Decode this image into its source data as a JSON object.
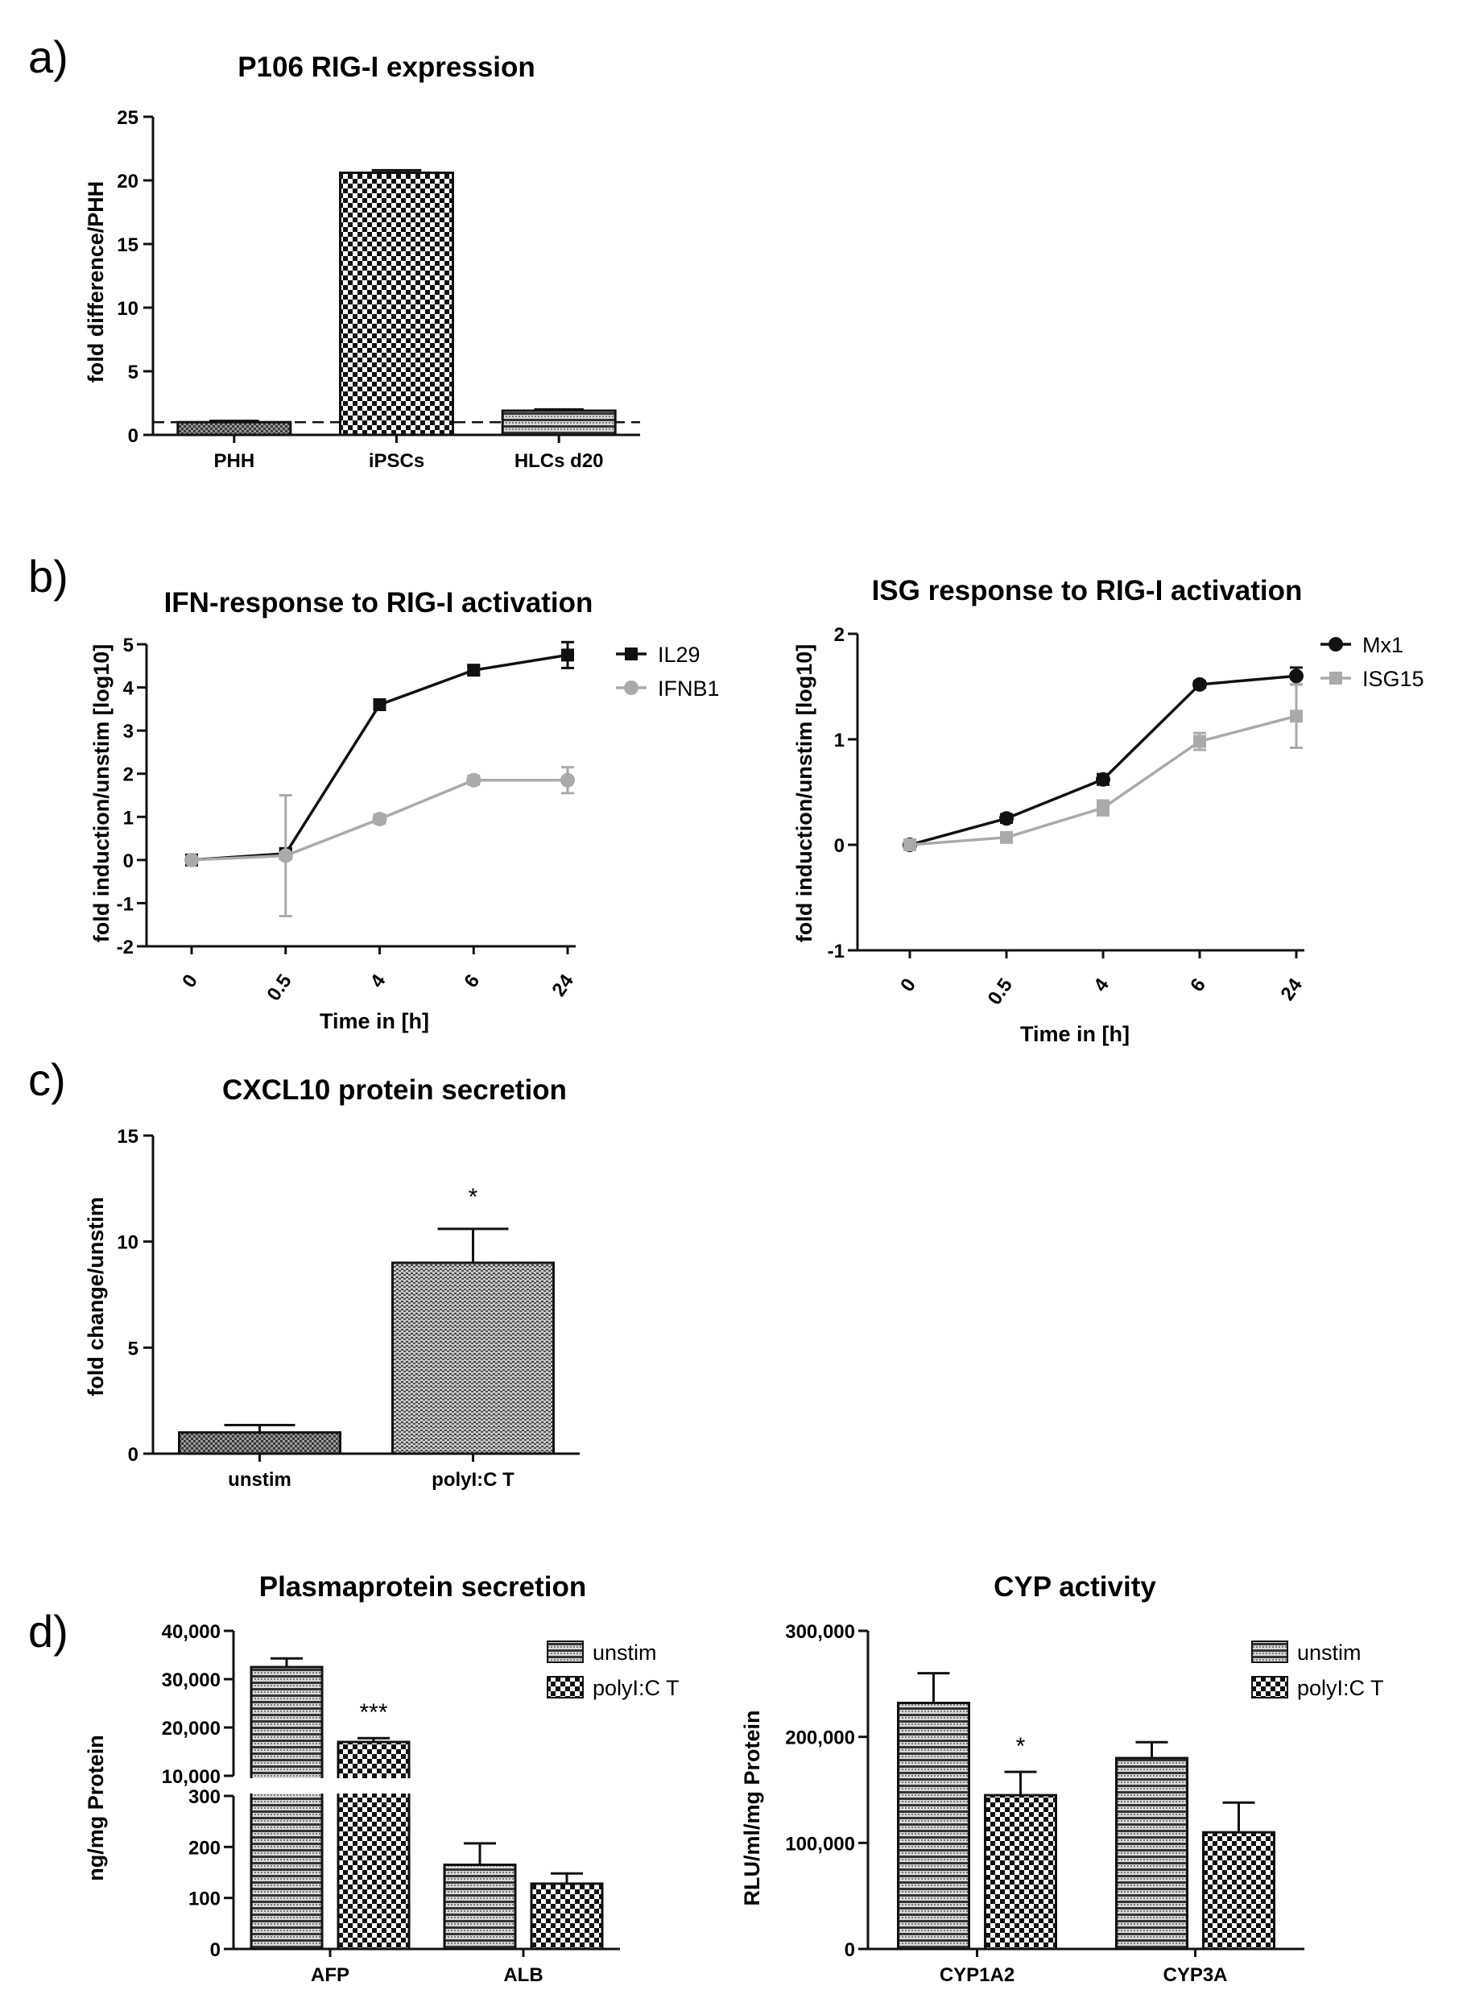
{
  "panel_labels": [
    "a)",
    "b)",
    "c)",
    "d)"
  ],
  "chart_data": [
    {
      "id": "a",
      "type": "bar",
      "title": "P106 RIG-I expression",
      "ylabel": "fold difference/PHH",
      "xlabel": "",
      "categories": [
        "PHH",
        "iPSCs",
        "HLCs d20"
      ],
      "values": [
        1.0,
        20.6,
        1.9
      ],
      "errors": [
        0.1,
        0.2,
        0.1
      ],
      "patterns": [
        "fine",
        "checker",
        "hstripe"
      ],
      "ylim": [
        0,
        25
      ],
      "yticks": [
        "0",
        "5",
        "10",
        "15",
        "20",
        "25"
      ],
      "reference_line": 1
    },
    {
      "id": "b1",
      "type": "line",
      "title": "IFN-response to RIG-I activation",
      "ylabel": "fold induction/unstim [log10]",
      "xlabel": "Time in [h]",
      "x": [
        "0",
        "0.5",
        "4",
        "6",
        "24"
      ],
      "ylim": [
        -2,
        5
      ],
      "yticks": [
        "-2",
        "-1",
        "0",
        "1",
        "2",
        "3",
        "4",
        "5"
      ],
      "series": [
        {
          "name": "IL29",
          "values": [
            0,
            0.15,
            3.6,
            4.4,
            4.75
          ],
          "errors": [
            0.05,
            0.1,
            0.1,
            0.1,
            0.3
          ],
          "color": "#111111",
          "marker": "square"
        },
        {
          "name": "IFNB1",
          "values": [
            0,
            0.1,
            0.95,
            1.85,
            1.85
          ],
          "errors": [
            0.05,
            1.4,
            0.1,
            0.1,
            0.3
          ],
          "color": "#aaaaaa",
          "marker": "circle"
        }
      ]
    },
    {
      "id": "b2",
      "type": "line",
      "title": "ISG response to RIG-I activation",
      "ylabel": "fold induction/unstim [log10]",
      "xlabel": "Time in [h]",
      "x": [
        "0",
        "0.5",
        "4",
        "6",
        "24"
      ],
      "ylim": [
        -1,
        2
      ],
      "yticks": [
        "-1",
        "0",
        "1",
        "2"
      ],
      "series": [
        {
          "name": "Mx1",
          "values": [
            0,
            0.25,
            0.62,
            1.52,
            1.6
          ],
          "errors": [
            0.02,
            0.04,
            0.05,
            0.03,
            0.08
          ],
          "color": "#111111",
          "marker": "circle"
        },
        {
          "name": "ISG15",
          "values": [
            0,
            0.07,
            0.35,
            0.98,
            1.22
          ],
          "errors": [
            0.02,
            0.03,
            0.07,
            0.08,
            0.3
          ],
          "color": "#aaaaaa",
          "marker": "square"
        }
      ]
    },
    {
      "id": "c",
      "type": "bar",
      "title": "CXCL10 protein secretion",
      "ylabel": "fold change/unstim",
      "xlabel": "",
      "categories": [
        "unstim",
        "polyI:C T"
      ],
      "values": [
        1.0,
        9.0
      ],
      "errors": [
        0.35,
        1.6
      ],
      "patterns": [
        "fine",
        "hstripe-fine"
      ],
      "annotations": [
        "",
        "*"
      ],
      "ylim": [
        0,
        15
      ],
      "yticks": [
        "0",
        "5",
        "10",
        "15"
      ]
    },
    {
      "id": "d1",
      "type": "bar",
      "title": "Plasmaprotein secretion",
      "ylabel": "ng/mg Protein",
      "xlabel": "",
      "categories": [
        "AFP",
        "ALB"
      ],
      "series": [
        {
          "name": "unstim",
          "values": [
            32500,
            165
          ],
          "errors": [
            1800,
            42
          ],
          "pattern": "hstripe"
        },
        {
          "name": "polyI:C T",
          "values": [
            17000,
            128
          ],
          "errors": [
            800,
            20
          ],
          "pattern": "checker"
        }
      ],
      "annotations": [
        [
          "",
          "***"
        ],
        [
          "",
          ""
        ]
      ],
      "broken_axis": {
        "lower_ylim": [
          0,
          300
        ],
        "upper_ylim": [
          10000,
          40000
        ]
      },
      "yticks_lower": [
        "0",
        "100",
        "200",
        "300"
      ],
      "yticks_upper": [
        "10,000",
        "20,000",
        "30,000",
        "40,000"
      ],
      "legend_position": "top-right"
    },
    {
      "id": "d2",
      "type": "bar",
      "title": "CYP activity",
      "ylabel": "RLU/ml/mg Protein",
      "xlabel": "",
      "categories": [
        "CYP1A2",
        "CYP3A"
      ],
      "series": [
        {
          "name": "unstim",
          "values": [
            232000,
            180000
          ],
          "errors": [
            28000,
            15000
          ],
          "pattern": "hstripe"
        },
        {
          "name": "polyI:C T",
          "values": [
            145000,
            110000
          ],
          "errors": [
            22000,
            28000
          ],
          "pattern": "checker"
        }
      ],
      "annotations": [
        [
          "",
          "*"
        ],
        [
          "",
          ""
        ]
      ],
      "ylim": [
        0,
        300000
      ],
      "yticks": [
        "0",
        "100,000",
        "200,000",
        "300,000"
      ],
      "legend_position": "top-right"
    }
  ]
}
